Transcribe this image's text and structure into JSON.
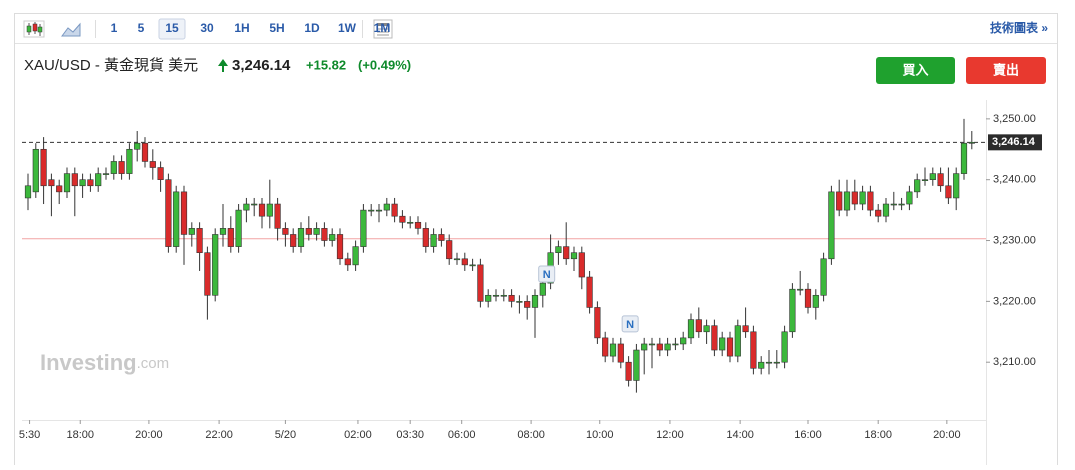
{
  "toolbar": {
    "intervals": [
      "1",
      "5",
      "15",
      "30",
      "1H",
      "5H",
      "1D",
      "1W",
      "1M"
    ],
    "active": "15",
    "link": "技術圖表 »"
  },
  "header": {
    "title": "XAU/USD - 黃金現貨 美元",
    "price": "3,246.14",
    "change": "+15.82",
    "change_pct": "(+0.49%)",
    "buy": "買入",
    "sell": "賣出"
  },
  "watermark": [
    "Investing",
    ".com"
  ],
  "chart_data": {
    "type": "candlestick",
    "candles": [
      [
        3237,
        3241,
        3235,
        3239
      ],
      [
        3238,
        3246,
        3237,
        3245
      ],
      [
        3245,
        3247,
        3236,
        3239
      ],
      [
        3240,
        3241,
        3234,
        3239
      ],
      [
        3239,
        3240,
        3236,
        3238
      ],
      [
        3238,
        3242,
        3237,
        3241
      ],
      [
        3241,
        3242,
        3234,
        3239
      ],
      [
        3239,
        3241,
        3237,
        3240
      ],
      [
        3240,
        3241,
        3238,
        3239
      ],
      [
        3239,
        3242,
        3238,
        3241
      ],
      [
        3241,
        3242,
        3240,
        3241
      ],
      [
        3241,
        3244,
        3240,
        3243
      ],
      [
        3243,
        3244,
        3240,
        3241
      ],
      [
        3241,
        3246,
        3240,
        3245
      ],
      [
        3245,
        3248,
        3243,
        3246
      ],
      [
        3246,
        3247,
        3242,
        3243
      ],
      [
        3243,
        3245,
        3240,
        3242
      ],
      [
        3242,
        3243,
        3238,
        3240
      ],
      [
        3240,
        3241,
        3228,
        3229
      ],
      [
        3229,
        3239,
        3228,
        3238
      ],
      [
        3238,
        3239,
        3226,
        3231
      ],
      [
        3231,
        3233,
        3229,
        3232
      ],
      [
        3232,
        3233,
        3225,
        3228
      ],
      [
        3228,
        3229,
        3217,
        3221
      ],
      [
        3221,
        3232,
        3220,
        3231
      ],
      [
        3231,
        3236,
        3229,
        3232
      ],
      [
        3232,
        3234,
        3228,
        3229
      ],
      [
        3229,
        3236,
        3228,
        3235
      ],
      [
        3235,
        3237,
        3233,
        3236
      ],
      [
        3236,
        3237,
        3234,
        3236
      ],
      [
        3236,
        3237,
        3232,
        3234
      ],
      [
        3234,
        3240,
        3232,
        3236
      ],
      [
        3236,
        3237,
        3230,
        3232
      ],
      [
        3232,
        3233,
        3229,
        3231
      ],
      [
        3231,
        3232,
        3228,
        3229
      ],
      [
        3229,
        3233,
        3228,
        3232
      ],
      [
        3232,
        3234,
        3230,
        3231
      ],
      [
        3231,
        3233,
        3230,
        3232
      ],
      [
        3232,
        3233,
        3229,
        3230
      ],
      [
        3230,
        3232,
        3229,
        3231
      ],
      [
        3231,
        3232,
        3226,
        3227
      ],
      [
        3227,
        3228,
        3225,
        3226
      ],
      [
        3226,
        3230,
        3225,
        3229
      ],
      [
        3229,
        3236,
        3228,
        3235
      ],
      [
        3235,
        3236,
        3234,
        3235
      ],
      [
        3235,
        3236,
        3233,
        3235
      ],
      [
        3235,
        3237,
        3234,
        3236
      ],
      [
        3236,
        3237,
        3233,
        3234
      ],
      [
        3234,
        3235,
        3232,
        3233
      ],
      [
        3233,
        3234,
        3232,
        3233
      ],
      [
        3233,
        3234,
        3231,
        3232
      ],
      [
        3232,
        3233,
        3228,
        3229
      ],
      [
        3229,
        3232,
        3228,
        3231
      ],
      [
        3231,
        3232,
        3229,
        3230
      ],
      [
        3230,
        3231,
        3226,
        3227
      ],
      [
        3227,
        3228,
        3226,
        3227
      ],
      [
        3227,
        3228,
        3225,
        3226
      ],
      [
        3226,
        3227,
        3225,
        3226
      ],
      [
        3226,
        3227,
        3219,
        3220
      ],
      [
        3220,
        3222,
        3219,
        3221
      ],
      [
        3221,
        3222,
        3220,
        3221
      ],
      [
        3221,
        3222,
        3220,
        3221
      ],
      [
        3221,
        3222,
        3219,
        3220
      ],
      [
        3220,
        3221,
        3218,
        3220
      ],
      [
        3220,
        3221,
        3217,
        3219
      ],
      [
        3219,
        3222,
        3214,
        3221
      ],
      [
        3221,
        3224,
        3219,
        3223
      ],
      [
        3223,
        3231,
        3222,
        3228
      ],
      [
        3228,
        3230,
        3226,
        3229
      ],
      [
        3229,
        3233,
        3226,
        3227
      ],
      [
        3227,
        3229,
        3225,
        3228
      ],
      [
        3228,
        3229,
        3222,
        3224
      ],
      [
        3224,
        3225,
        3218,
        3219
      ],
      [
        3219,
        3220,
        3213,
        3214
      ],
      [
        3214,
        3215,
        3210,
        3211
      ],
      [
        3211,
        3214,
        3210,
        3213
      ],
      [
        3213,
        3214,
        3209,
        3210
      ],
      [
        3210,
        3211,
        3206,
        3207
      ],
      [
        3207,
        3213,
        3205,
        3212
      ],
      [
        3212,
        3214,
        3208,
        3213
      ],
      [
        3213,
        3214,
        3209,
        3213
      ],
      [
        3213,
        3214,
        3211,
        3212
      ],
      [
        3212,
        3214,
        3211,
        3213
      ],
      [
        3213,
        3214,
        3212,
        3213
      ],
      [
        3213,
        3215,
        3212,
        3214
      ],
      [
        3214,
        3218,
        3213,
        3217
      ],
      [
        3217,
        3219,
        3214,
        3215
      ],
      [
        3215,
        3217,
        3213,
        3216
      ],
      [
        3216,
        3217,
        3211,
        3212
      ],
      [
        3212,
        3215,
        3211,
        3214
      ],
      [
        3214,
        3215,
        3210,
        3211
      ],
      [
        3211,
        3217,
        3210,
        3216
      ],
      [
        3216,
        3219,
        3214,
        3215
      ],
      [
        3215,
        3216,
        3208,
        3209
      ],
      [
        3209,
        3211,
        3208,
        3210
      ],
      [
        3210,
        3212,
        3208,
        3210
      ],
      [
        3210,
        3212,
        3209,
        3210
      ],
      [
        3210,
        3216,
        3209,
        3215
      ],
      [
        3215,
        3223,
        3214,
        3222
      ],
      [
        3222,
        3225,
        3221,
        3222
      ],
      [
        3222,
        3223,
        3218,
        3219
      ],
      [
        3219,
        3222,
        3217,
        3221
      ],
      [
        3221,
        3228,
        3220,
        3227
      ],
      [
        3227,
        3239,
        3226,
        3238
      ],
      [
        3238,
        3240,
        3234,
        3235
      ],
      [
        3235,
        3240,
        3234,
        3238
      ],
      [
        3238,
        3240,
        3235,
        3236
      ],
      [
        3236,
        3239,
        3235,
        3238
      ],
      [
        3238,
        3239,
        3234,
        3235
      ],
      [
        3235,
        3236,
        3233,
        3234
      ],
      [
        3234,
        3237,
        3233,
        3236
      ],
      [
        3236,
        3238,
        3235,
        3236
      ],
      [
        3236,
        3237,
        3235,
        3236
      ],
      [
        3236,
        3239,
        3235,
        3238
      ],
      [
        3238,
        3241,
        3237,
        3240
      ],
      [
        3240,
        3242,
        3239,
        3240
      ],
      [
        3240,
        3242,
        3239,
        3241
      ],
      [
        3241,
        3242,
        3238,
        3239
      ],
      [
        3239,
        3242,
        3236,
        3237
      ],
      [
        3237,
        3242,
        3235,
        3241
      ],
      [
        3241,
        3250,
        3240,
        3246
      ],
      [
        3246.14,
        3248,
        3245,
        3246.14
      ]
    ],
    "up_color": "#3cb83c",
    "down_color": "#d92b2b",
    "ylim": [
      3200.5,
      3253.1
    ],
    "yticks": [
      {
        "value": 3250,
        "label": "3,250.00"
      },
      {
        "value": 3240,
        "label": "3,240.00"
      },
      {
        "value": 3230,
        "label": "3,230.00"
      },
      {
        "value": 3220,
        "label": "3,220.00"
      },
      {
        "value": 3210,
        "label": "3,210.00"
      }
    ],
    "xticks": [
      {
        "value": 0.2,
        "label": "5:30"
      },
      {
        "value": 6.7,
        "label": "18:00"
      },
      {
        "value": 15.5,
        "label": "20:00"
      },
      {
        "value": 24.5,
        "label": "22:00"
      },
      {
        "value": 33,
        "label": "5/20"
      },
      {
        "value": 42.3,
        "label": "02:00"
      },
      {
        "value": 49,
        "label": "03:30"
      },
      {
        "value": 55.6,
        "label": "06:00"
      },
      {
        "value": 64.5,
        "label": "08:00"
      },
      {
        "value": 73.3,
        "label": "10:00"
      },
      {
        "value": 82.3,
        "label": "12:00"
      },
      {
        "value": 91.3,
        "label": "14:00"
      },
      {
        "value": 100,
        "label": "16:00"
      },
      {
        "value": 109,
        "label": "18:00"
      },
      {
        "value": 117.8,
        "label": "20:00"
      }
    ],
    "last_price": {
      "value": 3246.14,
      "label": "3,246.14"
    },
    "reference_line": 3230.3,
    "news_markers": [
      {
        "index": 66.5,
        "price": 3224.5,
        "label": "N"
      },
      {
        "index": 77.2,
        "price": 3216.3,
        "label": "N"
      }
    ]
  }
}
